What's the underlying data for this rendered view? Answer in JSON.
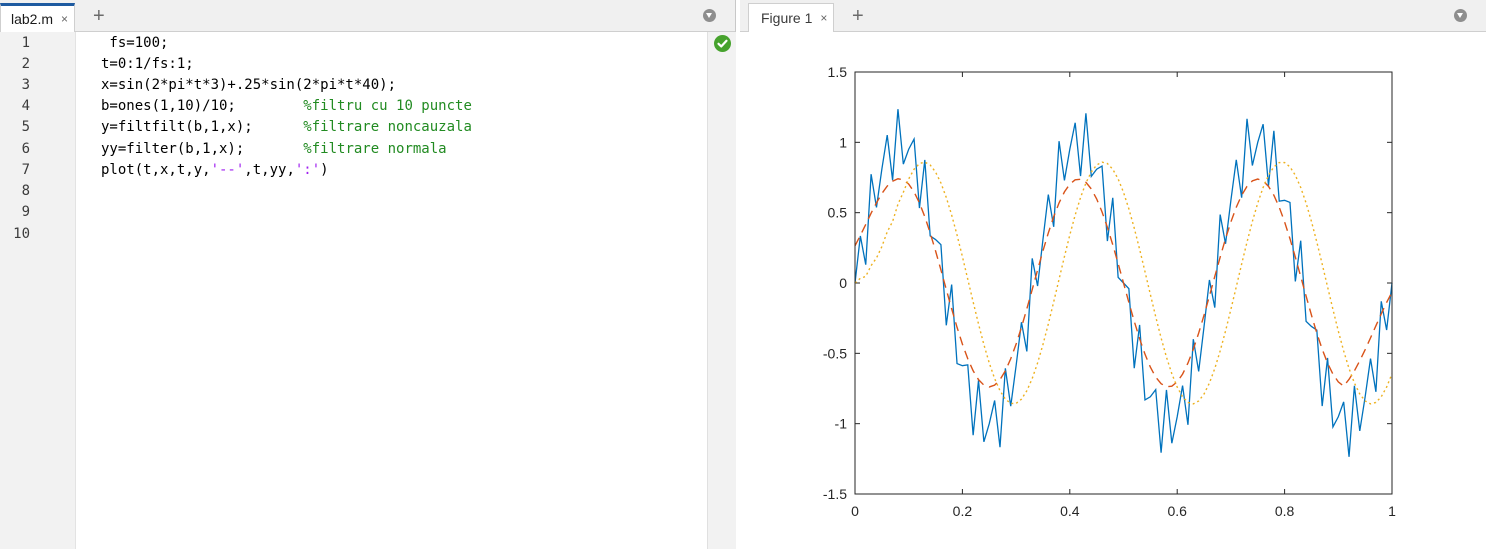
{
  "editor": {
    "tab_label": "lab2.m",
    "tab_close": "×",
    "new_tab": "+",
    "line_numbers": [
      "1",
      "2",
      "3",
      "4",
      "5",
      "6",
      "7",
      "8",
      "9",
      "10"
    ],
    "lines": [
      {
        "code": " fs=100;",
        "comment": "",
        "string": ""
      },
      {
        "code": "t=0:1/fs:1;",
        "comment": "",
        "string": ""
      },
      {
        "code": "x=sin(2*pi*t*3)+.25*sin(2*pi*t*40);",
        "comment": "",
        "string": ""
      },
      {
        "code": "b=ones(1,10)/10;        ",
        "comment": "%filtru cu 10 puncte",
        "string": ""
      },
      {
        "code": "y=filtfilt(b,1,x);      ",
        "comment": "%filtrare noncauzala",
        "string": ""
      },
      {
        "code": "yy=filter(b,1,x);       ",
        "comment": "%filtrare normala",
        "string": ""
      },
      {
        "code": "plot(t,x,t,y,",
        "comment": "",
        "string": "'--'",
        "code2": ",t,yy,",
        "string2": "':'",
        "code3": ")"
      }
    ],
    "status_icon": "check-circle-icon"
  },
  "figure": {
    "tab_label": "Figure 1",
    "tab_close": "×",
    "new_tab": "+"
  },
  "chart_data": {
    "type": "line",
    "title": "",
    "xlabel": "",
    "ylabel": "",
    "xlim": [
      0,
      1
    ],
    "ylim": [
      -1.5,
      1.5
    ],
    "xticks": [
      "0",
      "0.2",
      "0.4",
      "0.6",
      "0.8",
      "1"
    ],
    "xtick_values": [
      0,
      0.2,
      0.4,
      0.6,
      0.8,
      1
    ],
    "yticks": [
      "1.5",
      "1",
      "0.5",
      "0",
      "-0.5",
      "-1",
      "-1.5"
    ],
    "ytick_values": [
      1.5,
      1,
      0.5,
      0,
      -0.5,
      -1,
      -1.5
    ],
    "grid": false,
    "legend": "none",
    "series": [
      {
        "style": "solid",
        "color": "#0072bd"
      },
      {
        "style": "dashed",
        "color": "#d95319"
      },
      {
        "style": "dotted",
        "color": "#edb120"
      }
    ]
  }
}
